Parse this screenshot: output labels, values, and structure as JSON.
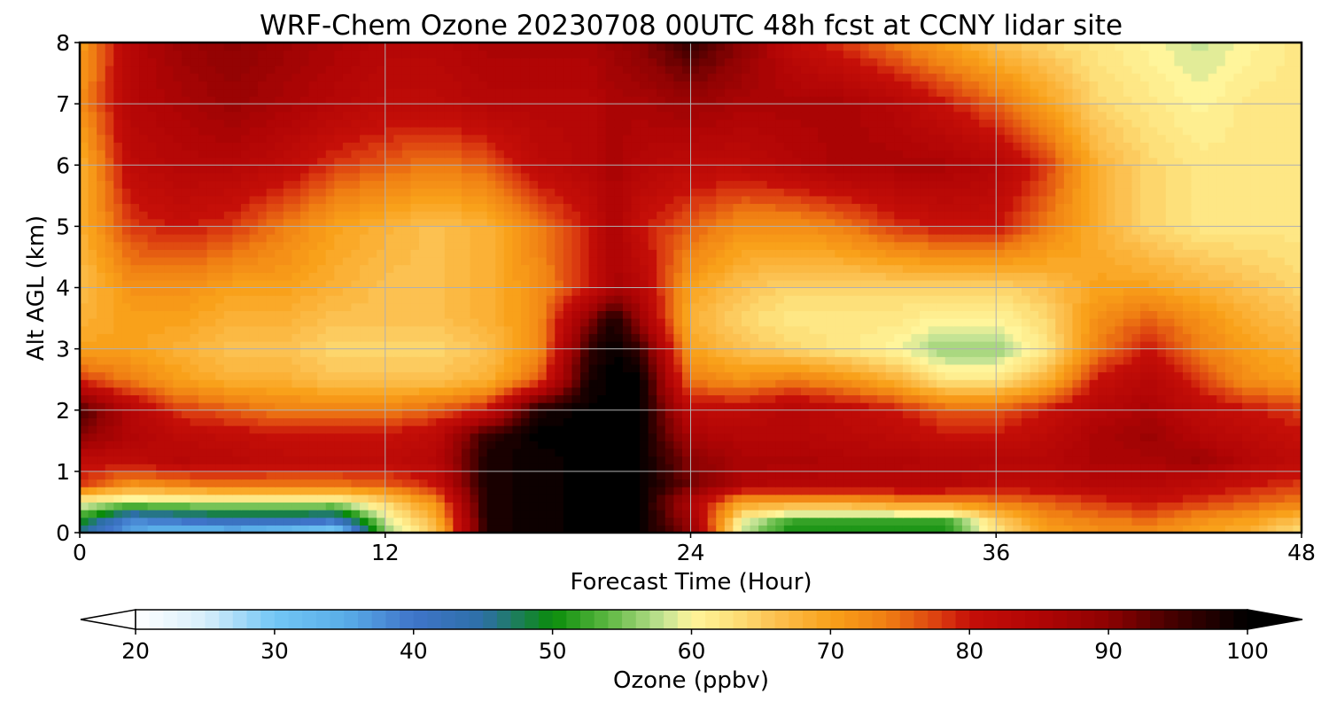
{
  "chart_data": {
    "type": "heatmap",
    "title": "WRF-Chem Ozone  20230708 00UTC 48h fcst at CCNY lidar site",
    "xlabel": "Forecast Time (Hour)",
    "ylabel": "Alt AGL (km)",
    "xlim": [
      0,
      48
    ],
    "ylim": [
      0,
      8
    ],
    "xticks": [
      0,
      12,
      24,
      36,
      48
    ],
    "yticks": [
      0,
      1,
      2,
      3,
      4,
      5,
      6,
      7,
      8
    ],
    "grid": true,
    "x": [
      0,
      2,
      4,
      6,
      8,
      10,
      12,
      14,
      16,
      18,
      20,
      21,
      22,
      24,
      26,
      28,
      30,
      32,
      34,
      36,
      38,
      40,
      42,
      44,
      46,
      48
    ],
    "y": [
      0,
      0.2,
      0.5,
      0.8,
      1.2,
      1.6,
      2,
      2.5,
      3,
      3.5,
      4,
      5,
      6,
      7,
      8
    ],
    "z": [
      [
        45,
        35,
        32,
        33,
        30,
        27,
        55,
        66,
        98,
        99,
        100,
        100,
        100,
        90,
        58,
        50,
        50,
        50,
        50,
        62,
        70,
        72,
        72,
        70,
        68,
        62
      ],
      [
        50,
        38,
        40,
        42,
        42,
        40,
        58,
        68,
        98,
        99,
        100,
        100,
        100,
        88,
        60,
        52,
        52,
        52,
        52,
        64,
        72,
        74,
        75,
        72,
        70,
        66
      ],
      [
        60,
        57,
        58,
        59,
        59,
        58,
        64,
        72,
        98,
        99,
        100,
        100,
        100,
        85,
        70,
        70,
        70,
        72,
        72,
        74,
        76,
        78,
        80,
        78,
        76,
        74
      ],
      [
        78,
        72,
        74,
        75,
        75,
        75,
        76,
        80,
        98,
        99,
        100,
        100,
        100,
        92,
        85,
        84,
        84,
        84,
        84,
        82,
        82,
        84,
        84,
        82,
        80,
        78
      ],
      [
        82,
        82,
        84,
        83,
        82,
        82,
        82,
        84,
        98,
        99,
        100,
        100,
        100,
        90,
        86,
        86,
        85,
        85,
        84,
        84,
        84,
        86,
        86,
        88,
        84,
        82
      ],
      [
        90,
        85,
        82,
        81,
        80,
        80,
        80,
        82,
        96,
        100,
        100,
        100,
        100,
        86,
        84,
        84,
        83,
        82,
        80,
        80,
        82,
        86,
        88,
        84,
        82,
        80
      ],
      [
        95,
        84,
        78,
        76,
        74,
        74,
        74,
        76,
        80,
        98,
        100,
        100,
        100,
        82,
        82,
        84,
        82,
        80,
        76,
        76,
        80,
        84,
        86,
        82,
        80,
        78
      ],
      [
        78,
        74,
        70,
        68,
        68,
        66,
        66,
        66,
        68,
        76,
        98,
        100,
        100,
        74,
        72,
        74,
        72,
        68,
        62,
        62,
        68,
        80,
        84,
        78,
        72,
        70
      ],
      [
        70,
        70,
        68,
        66,
        66,
        64,
        64,
        64,
        66,
        72,
        96,
        100,
        96,
        70,
        66,
        64,
        62,
        60,
        56,
        56,
        62,
        74,
        80,
        74,
        70,
        68
      ],
      [
        68,
        70,
        70,
        68,
        68,
        66,
        66,
        66,
        68,
        72,
        90,
        98,
        88,
        68,
        64,
        62,
        62,
        62,
        60,
        60,
        64,
        72,
        76,
        72,
        68,
        66
      ],
      [
        66,
        72,
        72,
        70,
        70,
        68,
        66,
        66,
        68,
        72,
        80,
        86,
        84,
        70,
        66,
        64,
        64,
        64,
        64,
        64,
        66,
        70,
        70,
        68,
        66,
        64
      ],
      [
        68,
        78,
        80,
        78,
        74,
        70,
        68,
        66,
        68,
        74,
        80,
        86,
        80,
        76,
        72,
        72,
        74,
        78,
        80,
        80,
        74,
        68,
        64,
        62,
        62,
        62
      ],
      [
        68,
        82,
        84,
        84,
        82,
        78,
        76,
        74,
        76,
        82,
        84,
        86,
        84,
        82,
        82,
        84,
        86,
        86,
        86,
        84,
        78,
        68,
        64,
        62,
        62,
        62
      ],
      [
        72,
        84,
        86,
        88,
        86,
        84,
        82,
        82,
        84,
        84,
        84,
        86,
        86,
        88,
        86,
        86,
        86,
        84,
        80,
        76,
        70,
        64,
        62,
        60,
        62,
        62
      ],
      [
        70,
        84,
        88,
        90,
        88,
        86,
        84,
        84,
        86,
        86,
        86,
        88,
        90,
        96,
        90,
        82,
        78,
        74,
        70,
        66,
        64,
        62,
        60,
        58,
        60,
        62
      ]
    ],
    "colorbar": {
      "label": "Ozone  (ppbv)",
      "min": 20,
      "max": 100,
      "ticks": [
        20,
        30,
        40,
        50,
        60,
        70,
        80,
        90,
        100
      ],
      "extend": "both"
    },
    "colormap": [
      [
        20,
        "#ffffff"
      ],
      [
        25,
        "#d7eefa"
      ],
      [
        30,
        "#72c6f5"
      ],
      [
        35,
        "#5aaee8"
      ],
      [
        40,
        "#3f74c9"
      ],
      [
        45,
        "#2d6fa6"
      ],
      [
        50,
        "#0a8c0a"
      ],
      [
        54,
        "#5db842"
      ],
      [
        58,
        "#c4e394"
      ],
      [
        60,
        "#fff59b"
      ],
      [
        63,
        "#fde07a"
      ],
      [
        66,
        "#fcc151"
      ],
      [
        70,
        "#f9a11a"
      ],
      [
        74,
        "#f07f13"
      ],
      [
        78,
        "#da3a10"
      ],
      [
        80,
        "#c50f08"
      ],
      [
        85,
        "#b10505"
      ],
      [
        90,
        "#8d0202"
      ],
      [
        95,
        "#3f0000"
      ],
      [
        100,
        "#000000"
      ]
    ]
  }
}
